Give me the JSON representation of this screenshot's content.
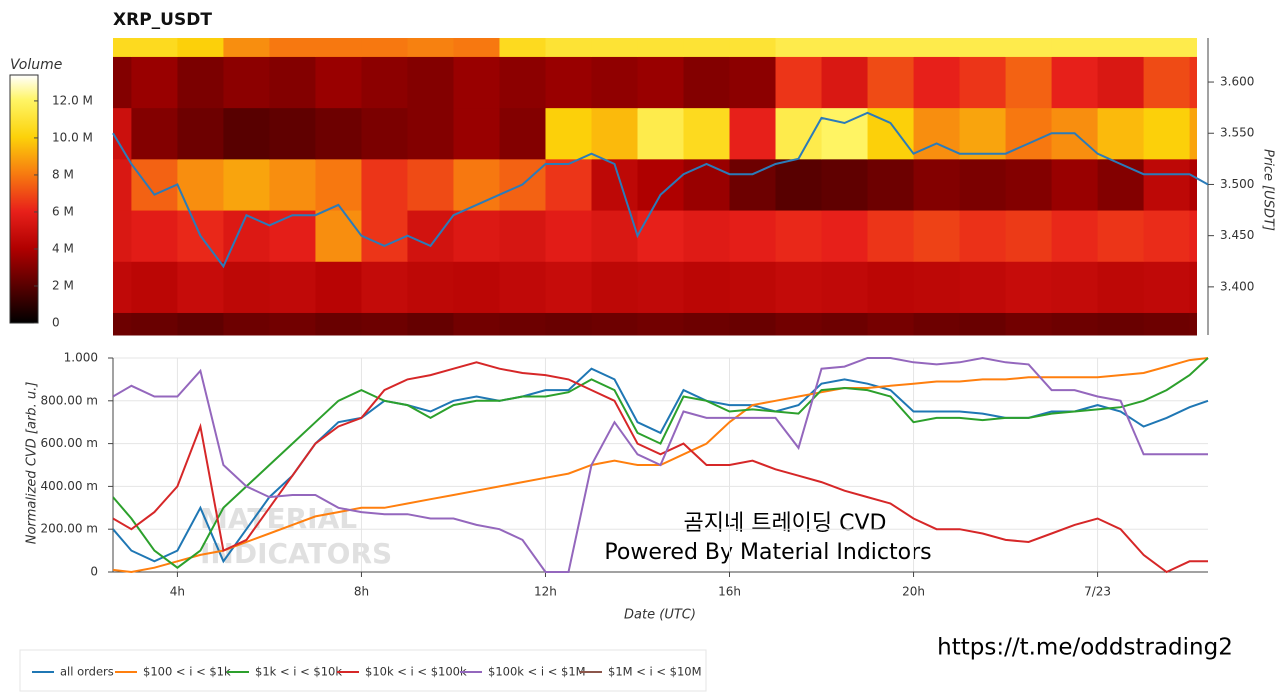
{
  "chart_data": [
    {
      "type": "heatmap",
      "title": "XRP_USDT",
      "colorbar_title": "Volume",
      "y2label": "Price [USDT]",
      "x_bins": [
        2.6,
        3,
        4,
        5,
        6,
        7,
        8,
        9,
        10,
        11,
        12,
        13,
        14,
        15,
        16,
        17,
        18,
        19,
        20,
        21,
        22,
        23,
        24,
        25,
        26,
        26.15
      ],
      "y_bins": [
        3.353,
        3.375,
        3.425,
        3.475,
        3.525,
        3.575,
        3.625,
        3.643
      ],
      "z": [
        [
          2.5,
          2.4,
          2.2,
          2.5,
          2.6,
          2.4,
          2.5,
          2.3,
          2.6,
          2.5,
          2.4,
          2.5,
          2.6,
          2.5,
          2.4,
          2.6,
          2.5,
          2.7,
          2.5,
          2.4,
          2.6,
          2.5,
          2.4,
          2.5,
          2.6
        ],
        [
          4.6,
          4.4,
          4.8,
          4.5,
          4.6,
          4.3,
          4.7,
          4.5,
          4.4,
          4.6,
          4.8,
          4.5,
          4.6,
          4.4,
          4.5,
          4.7,
          4.6,
          4.4,
          4.5,
          4.6,
          4.8,
          4.7,
          4.5,
          4.6,
          4.4
        ],
        [
          5.5,
          5.8,
          6.2,
          5.6,
          5.9,
          8.5,
          6.5,
          5.2,
          5.6,
          5.4,
          5.8,
          5.5,
          6.0,
          5.7,
          5.9,
          6.2,
          6.0,
          6.5,
          6.8,
          6.4,
          6.6,
          6.2,
          6.5,
          6.3,
          6.0
        ],
        [
          5.5,
          7.5,
          8.5,
          9.0,
          8.5,
          8.0,
          6.5,
          7.0,
          8.0,
          7.5,
          6.5,
          4.5,
          4.0,
          3.5,
          2.5,
          2.0,
          2.2,
          2.5,
          3.0,
          2.8,
          3.0,
          3.5,
          3.0,
          4.5,
          4.0
        ],
        [
          5.0,
          3.0,
          2.5,
          2.0,
          2.2,
          2.5,
          2.8,
          3.0,
          3.5,
          3.0,
          10.0,
          9.5,
          11.5,
          10.5,
          6.0,
          11.5,
          12.0,
          10.0,
          8.5,
          9.0,
          8.0,
          8.5,
          9.5,
          10.0,
          9.0
        ],
        [
          3.0,
          3.5,
          2.8,
          3.2,
          3.0,
          3.5,
          3.2,
          3.0,
          3.5,
          3.2,
          3.5,
          3.3,
          3.5,
          3.0,
          3.2,
          6.5,
          5.5,
          7.0,
          6.0,
          6.5,
          7.5,
          6.0,
          5.5,
          7.0,
          6.5
        ],
        [
          10.5,
          10.5,
          10.0,
          8.5,
          8.0,
          8.0,
          8.0,
          8.2,
          8.0,
          10.5,
          11.0,
          11.0,
          11.0,
          11.0,
          11.0,
          11.5,
          11.5,
          11.5,
          11.5,
          11.5,
          11.5,
          11.5,
          11.5,
          11.5,
          11.5
        ]
      ],
      "zlim": [
        0,
        13.4
      ],
      "zticks": [
        0,
        {
          "value": 2,
          "label": "2 M"
        },
        {
          "value": 4,
          "label": "4 M"
        },
        {
          "value": 6,
          "label": "6 M"
        },
        {
          "value": 8,
          "label": "8 M"
        },
        {
          "value": 10,
          "label": "10.0 M"
        },
        {
          "value": 12,
          "label": "12.0 M"
        }
      ],
      "xlim": [
        2.6,
        26.4
      ],
      "ylim": [
        3.353,
        3.643
      ],
      "yticks": [
        {
          "value": 3.4,
          "label": "3.400"
        },
        {
          "value": 3.45,
          "label": "3.450"
        },
        {
          "value": 3.5,
          "label": "3.500"
        },
        {
          "value": 3.55,
          "label": "3.550"
        },
        {
          "value": 3.6,
          "label": "3.600"
        }
      ],
      "price": {
        "color": "#2b7bb9",
        "x": [
          2.6,
          3,
          3.5,
          4,
          4.5,
          5,
          5.5,
          6,
          6.5,
          7,
          7.5,
          8,
          8.5,
          9,
          9.5,
          10,
          10.5,
          11,
          11.5,
          12,
          12.5,
          13,
          13.5,
          14,
          14.5,
          15,
          15.5,
          16,
          16.5,
          17,
          17.5,
          18,
          18.5,
          19,
          19.5,
          20,
          20.5,
          21,
          21.5,
          22,
          22.5,
          23,
          23.5,
          24,
          24.5,
          25,
          25.5,
          26,
          26.4
        ],
        "values": [
          3.55,
          3.52,
          3.49,
          3.5,
          3.45,
          3.42,
          3.47,
          3.46,
          3.47,
          3.47,
          3.48,
          3.45,
          3.44,
          3.45,
          3.44,
          3.47,
          3.48,
          3.49,
          3.5,
          3.52,
          3.52,
          3.53,
          3.52,
          3.45,
          3.49,
          3.51,
          3.52,
          3.51,
          3.51,
          3.52,
          3.525,
          3.565,
          3.56,
          3.57,
          3.56,
          3.53,
          3.54,
          3.53,
          3.53,
          3.53,
          3.54,
          3.55,
          3.55,
          3.53,
          3.52,
          3.51,
          3.51,
          3.51,
          3.5
        ]
      }
    },
    {
      "type": "line",
      "xlabel": "Date (UTC)",
      "ylabel": "Normalized CVD [arb. u.]",
      "grid": true,
      "legend": "bottom",
      "xlim": [
        2.6,
        26.4
      ],
      "xticks": [
        {
          "value": 4,
          "label": "4h"
        },
        {
          "value": 8,
          "label": "8h"
        },
        {
          "value": 12,
          "label": "12h"
        },
        {
          "value": 16,
          "label": "16h"
        },
        {
          "value": 20,
          "label": "20h"
        },
        {
          "value": 24,
          "label": "7/23"
        }
      ],
      "ylim": [
        0,
        1
      ],
      "yticks": [
        0,
        {
          "value": 0.2,
          "label": "200.00 m"
        },
        {
          "value": 0.4,
          "label": "400.00 m"
        },
        {
          "value": 0.6,
          "label": "600.00 m"
        },
        {
          "value": 0.8,
          "label": "800.00 m"
        },
        {
          "value": 1,
          "label": "1.000"
        }
      ],
      "x": [
        2.6,
        3,
        3.5,
        4,
        4.5,
        5,
        5.5,
        6,
        6.5,
        7,
        7.5,
        8,
        8.5,
        9,
        9.5,
        10,
        10.5,
        11,
        11.5,
        12,
        12.5,
        13,
        13.5,
        14,
        14.5,
        15,
        15.5,
        16,
        16.5,
        17,
        17.5,
        18,
        18.5,
        19,
        19.5,
        20,
        20.5,
        21,
        21.5,
        22,
        22.5,
        23,
        23.5,
        24,
        24.5,
        25,
        25.5,
        26,
        26.4
      ],
      "series": [
        {
          "name": "all orders",
          "color": "#1f77b4",
          "values": [
            0.2,
            0.1,
            0.05,
            0.1,
            0.3,
            0.05,
            0.2,
            0.35,
            0.45,
            0.6,
            0.7,
            0.72,
            0.8,
            0.78,
            0.75,
            0.8,
            0.82,
            0.8,
            0.82,
            0.85,
            0.85,
            0.95,
            0.9,
            0.7,
            0.65,
            0.85,
            0.8,
            0.78,
            0.78,
            0.75,
            0.78,
            0.88,
            0.9,
            0.88,
            0.85,
            0.75,
            0.75,
            0.75,
            0.74,
            0.72,
            0.72,
            0.75,
            0.75,
            0.78,
            0.75,
            0.68,
            0.72,
            0.77,
            0.8
          ]
        },
        {
          "name": "$100 < i < $1k",
          "color": "#ff7f0e",
          "values": [
            0.01,
            0,
            0.02,
            0.05,
            0.08,
            0.1,
            0.14,
            0.18,
            0.22,
            0.26,
            0.28,
            0.3,
            0.3,
            0.32,
            0.34,
            0.36,
            0.38,
            0.4,
            0.42,
            0.44,
            0.46,
            0.5,
            0.52,
            0.5,
            0.5,
            0.55,
            0.6,
            0.7,
            0.78,
            0.8,
            0.82,
            0.84,
            0.86,
            0.86,
            0.87,
            0.88,
            0.89,
            0.89,
            0.9,
            0.9,
            0.91,
            0.91,
            0.91,
            0.91,
            0.92,
            0.93,
            0.96,
            0.99,
            1.0
          ]
        },
        {
          "name": "$1k < i < $10k",
          "color": "#2ca02c",
          "values": [
            0.35,
            0.25,
            0.1,
            0.02,
            0.1,
            0.3,
            0.4,
            0.5,
            0.6,
            0.7,
            0.8,
            0.85,
            0.8,
            0.78,
            0.72,
            0.78,
            0.8,
            0.8,
            0.82,
            0.82,
            0.84,
            0.9,
            0.85,
            0.65,
            0.6,
            0.82,
            0.8,
            0.75,
            0.76,
            0.75,
            0.74,
            0.85,
            0.86,
            0.85,
            0.82,
            0.7,
            0.72,
            0.72,
            0.71,
            0.72,
            0.72,
            0.74,
            0.75,
            0.76,
            0.77,
            0.8,
            0.85,
            0.92,
            1.0
          ]
        },
        {
          "name": "$10k < i < $100k",
          "color": "#d62728",
          "values": [
            0.25,
            0.2,
            0.28,
            0.4,
            0.68,
            0.1,
            0.15,
            0.3,
            0.45,
            0.6,
            0.68,
            0.72,
            0.85,
            0.9,
            0.92,
            0.95,
            0.98,
            0.95,
            0.93,
            0.92,
            0.9,
            0.85,
            0.8,
            0.6,
            0.55,
            0.6,
            0.5,
            0.5,
            0.52,
            0.48,
            0.45,
            0.42,
            0.38,
            0.35,
            0.32,
            0.25,
            0.2,
            0.2,
            0.18,
            0.15,
            0.14,
            0.18,
            0.22,
            0.25,
            0.2,
            0.08,
            0.0,
            0.05,
            0.05
          ]
        },
        {
          "name": "$100k < i < $1M",
          "color": "#9467bd",
          "values": [
            0.82,
            0.87,
            0.82,
            0.82,
            0.94,
            0.5,
            0.4,
            0.35,
            0.36,
            0.36,
            0.3,
            0.28,
            0.27,
            0.27,
            0.25,
            0.25,
            0.22,
            0.2,
            0.15,
            0.0,
            0.0,
            0.5,
            0.7,
            0.55,
            0.5,
            0.75,
            0.72,
            0.72,
            0.72,
            0.72,
            0.58,
            0.95,
            0.96,
            1.0,
            1.0,
            0.98,
            0.97,
            0.98,
            1.0,
            0.98,
            0.97,
            0.85,
            0.85,
            0.82,
            0.8,
            0.55,
            0.55,
            0.55,
            0.55
          ]
        },
        {
          "name": "$1M < i < $10M",
          "color": "#8c564b",
          "values": [
            null,
            null,
            null,
            null,
            null,
            null,
            null,
            null,
            null,
            null,
            null,
            null,
            null,
            null,
            null,
            null,
            null,
            null,
            null,
            null,
            null,
            null,
            null,
            null,
            null,
            null,
            null,
            null,
            null,
            null,
            null,
            null,
            null,
            null,
            null,
            null,
            null,
            null,
            null,
            null,
            null,
            null,
            null,
            null,
            null,
            null,
            null,
            null,
            null
          ]
        }
      ],
      "annotations": [
        "곰지네 트레이딩 CVD",
        "Powered By Material Indictors",
        "https://t.me/oddstrading2"
      ],
      "watermark": [
        "MATERIAL",
        "INDICATORS"
      ]
    }
  ]
}
